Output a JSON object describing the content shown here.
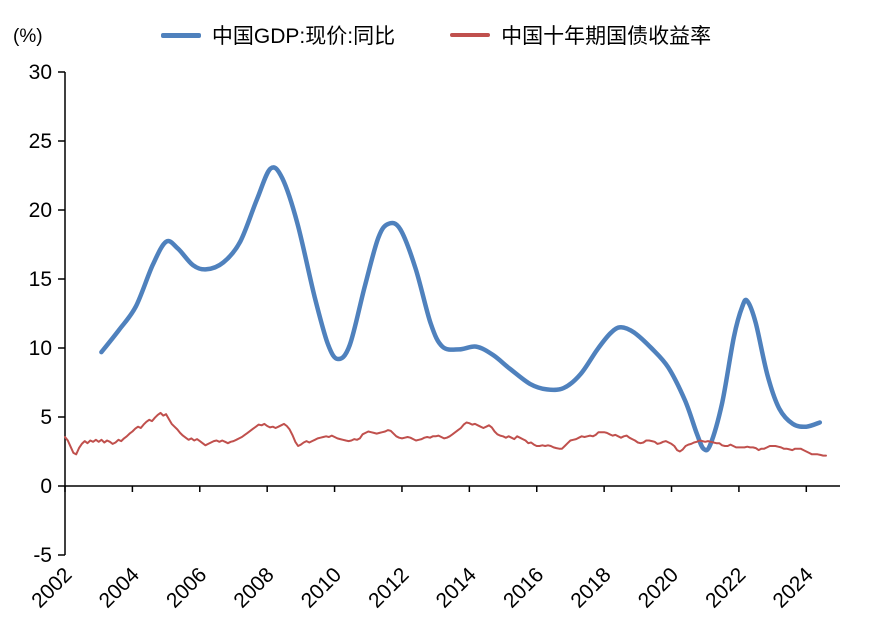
{
  "chart_data": {
    "type": "line",
    "title": "",
    "unit_label": "(%)",
    "legend": {
      "position": "top"
    },
    "x_axis": {
      "min": 2002,
      "max": 2025,
      "ticks": [
        2002,
        2004,
        2006,
        2008,
        2010,
        2012,
        2014,
        2016,
        2018,
        2020,
        2022,
        2024
      ],
      "tick_rotation": -45
    },
    "y_axis": {
      "min": -5,
      "max": 30,
      "ticks": [
        -5,
        0,
        5,
        10,
        15,
        20,
        25,
        30
      ]
    },
    "series": [
      {
        "name": "中国GDP:现价:同比",
        "color": "#4f81bd",
        "stroke_width": 4.5,
        "smooth": true,
        "points": [
          [
            2003.08,
            9.7
          ],
          [
            2003.6,
            11.3
          ],
          [
            2004.1,
            13.0
          ],
          [
            2004.6,
            16.0
          ],
          [
            2005.0,
            17.7
          ],
          [
            2005.35,
            17.2
          ],
          [
            2005.8,
            16.0
          ],
          [
            2006.2,
            15.7
          ],
          [
            2006.7,
            16.2
          ],
          [
            2007.2,
            17.7
          ],
          [
            2007.7,
            20.8
          ],
          [
            2008.1,
            23.0
          ],
          [
            2008.45,
            22.3
          ],
          [
            2008.9,
            19.0
          ],
          [
            2009.4,
            13.8
          ],
          [
            2009.8,
            10.3
          ],
          [
            2010.1,
            9.2
          ],
          [
            2010.45,
            10.2
          ],
          [
            2010.9,
            14.5
          ],
          [
            2011.3,
            18.0
          ],
          [
            2011.6,
            19.0
          ],
          [
            2011.95,
            18.6
          ],
          [
            2012.4,
            15.8
          ],
          [
            2012.85,
            11.8
          ],
          [
            2013.2,
            10.1
          ],
          [
            2013.7,
            9.9
          ],
          [
            2014.2,
            10.1
          ],
          [
            2014.7,
            9.5
          ],
          [
            2015.2,
            8.5
          ],
          [
            2015.8,
            7.4
          ],
          [
            2016.3,
            7.0
          ],
          [
            2016.8,
            7.1
          ],
          [
            2017.3,
            8.1
          ],
          [
            2017.8,
            9.9
          ],
          [
            2018.2,
            11.1
          ],
          [
            2018.5,
            11.5
          ],
          [
            2018.9,
            11.1
          ],
          [
            2019.4,
            10.0
          ],
          [
            2019.9,
            8.6
          ],
          [
            2020.4,
            6.2
          ],
          [
            2020.75,
            3.8
          ],
          [
            2020.95,
            2.7
          ],
          [
            2021.15,
            3.0
          ],
          [
            2021.5,
            6.0
          ],
          [
            2021.85,
            10.8
          ],
          [
            2022.1,
            13.0
          ],
          [
            2022.25,
            13.4
          ],
          [
            2022.5,
            11.8
          ],
          [
            2022.85,
            8.0
          ],
          [
            2023.2,
            5.6
          ],
          [
            2023.6,
            4.5
          ],
          [
            2024.0,
            4.3
          ],
          [
            2024.4,
            4.6
          ]
        ]
      },
      {
        "name": "中国十年期国债收益率",
        "color": "#c0504d",
        "stroke_width": 2,
        "smooth": false,
        "x_start": 2002.0,
        "x_step": 0.0833333,
        "values": [
          3.55,
          3.3,
          2.85,
          2.4,
          2.3,
          2.75,
          3.05,
          3.25,
          3.1,
          3.3,
          3.2,
          3.35,
          3.2,
          3.35,
          3.15,
          3.3,
          3.2,
          3.05,
          3.15,
          3.35,
          3.25,
          3.45,
          3.6,
          3.8,
          3.95,
          4.15,
          4.3,
          4.2,
          4.45,
          4.65,
          4.8,
          4.7,
          4.95,
          5.15,
          5.3,
          5.1,
          5.2,
          4.85,
          4.5,
          4.3,
          4.1,
          3.85,
          3.65,
          3.5,
          3.35,
          3.45,
          3.3,
          3.4,
          3.25,
          3.1,
          2.95,
          3.05,
          3.15,
          3.25,
          3.3,
          3.2,
          3.3,
          3.2,
          3.1,
          3.2,
          3.25,
          3.35,
          3.45,
          3.55,
          3.7,
          3.85,
          4.0,
          4.15,
          4.3,
          4.45,
          4.4,
          4.5,
          4.35,
          4.25,
          4.3,
          4.2,
          4.3,
          4.4,
          4.5,
          4.35,
          4.1,
          3.7,
          3.2,
          2.9,
          3.0,
          3.15,
          3.25,
          3.15,
          3.25,
          3.35,
          3.45,
          3.5,
          3.55,
          3.6,
          3.55,
          3.65,
          3.55,
          3.45,
          3.4,
          3.35,
          3.3,
          3.25,
          3.3,
          3.4,
          3.35,
          3.45,
          3.75,
          3.85,
          3.95,
          3.9,
          3.85,
          3.8,
          3.85,
          3.9,
          3.95,
          4.05,
          4.0,
          3.8,
          3.6,
          3.5,
          3.45,
          3.5,
          3.55,
          3.5,
          3.4,
          3.3,
          3.35,
          3.4,
          3.5,
          3.55,
          3.5,
          3.6,
          3.6,
          3.65,
          3.55,
          3.45,
          3.5,
          3.6,
          3.75,
          3.9,
          4.05,
          4.2,
          4.45,
          4.6,
          4.55,
          4.45,
          4.5,
          4.4,
          4.3,
          4.2,
          4.3,
          4.4,
          4.25,
          3.95,
          3.75,
          3.65,
          3.6,
          3.5,
          3.6,
          3.5,
          3.4,
          3.6,
          3.5,
          3.4,
          3.3,
          3.1,
          3.15,
          3.0,
          2.9,
          2.9,
          2.95,
          2.9,
          2.95,
          2.9,
          2.8,
          2.75,
          2.7,
          2.7,
          2.9,
          3.1,
          3.3,
          3.35,
          3.4,
          3.5,
          3.6,
          3.55,
          3.6,
          3.65,
          3.6,
          3.7,
          3.9,
          3.9,
          3.9,
          3.85,
          3.75,
          3.65,
          3.7,
          3.6,
          3.5,
          3.6,
          3.65,
          3.5,
          3.4,
          3.3,
          3.15,
          3.1,
          3.15,
          3.3,
          3.3,
          3.25,
          3.2,
          3.05,
          3.1,
          3.2,
          3.25,
          3.15,
          3.05,
          2.9,
          2.6,
          2.5,
          2.65,
          2.9,
          3.0,
          3.05,
          3.15,
          3.2,
          3.3,
          3.25,
          3.2,
          3.25,
          3.2,
          3.15,
          3.1,
          3.1,
          2.95,
          2.9,
          2.9,
          3.0,
          2.9,
          2.8,
          2.8,
          2.8,
          2.8,
          2.85,
          2.8,
          2.8,
          2.75,
          2.6,
          2.7,
          2.7,
          2.8,
          2.9,
          2.9,
          2.9,
          2.85,
          2.8,
          2.7,
          2.7,
          2.65,
          2.6,
          2.7,
          2.7,
          2.7,
          2.6,
          2.5,
          2.4,
          2.3,
          2.3,
          2.3,
          2.25,
          2.2,
          2.2
        ]
      }
    ]
  }
}
